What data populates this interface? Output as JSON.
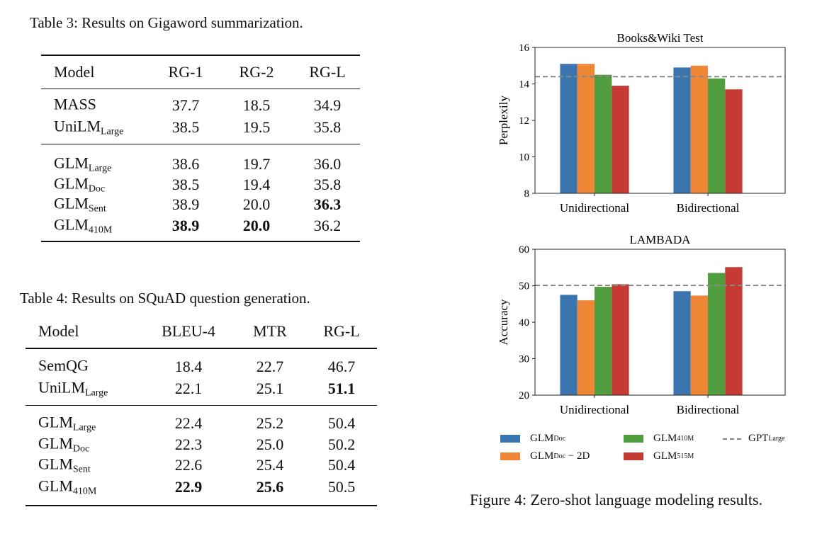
{
  "table3": {
    "caption": "Table 3: Results on Gigaword summarization.",
    "headers": [
      "Model",
      "RG-1",
      "RG-2",
      "RG-L"
    ],
    "rows": [
      {
        "model": "MASS",
        "sub": "",
        "v": [
          "37.7",
          "18.5",
          "34.9"
        ],
        "bold": [
          false,
          false,
          false
        ]
      },
      {
        "model": "UniLM",
        "sub": "Large",
        "v": [
          "38.5",
          "19.5",
          "35.8"
        ],
        "bold": [
          false,
          false,
          false
        ]
      },
      {
        "model": "GLM",
        "sub": "Large",
        "v": [
          "38.6",
          "19.7",
          "36.0"
        ],
        "bold": [
          false,
          false,
          false
        ]
      },
      {
        "model": "GLM",
        "sub": "Doc",
        "v": [
          "38.5",
          "19.4",
          "35.8"
        ],
        "bold": [
          false,
          false,
          false
        ]
      },
      {
        "model": "GLM",
        "sub": "Sent",
        "v": [
          "38.9",
          "20.0",
          "36.3"
        ],
        "bold": [
          false,
          false,
          true
        ]
      },
      {
        "model": "GLM",
        "sub": "410M",
        "v": [
          "38.9",
          "20.0",
          "36.2"
        ],
        "bold": [
          true,
          true,
          false
        ]
      }
    ]
  },
  "table4": {
    "caption": "Table 4: Results on SQuAD question generation.",
    "headers": [
      "Model",
      "BLEU-4",
      "MTR",
      "RG-L"
    ],
    "rows": [
      {
        "model": "SemQG",
        "sub": "",
        "v": [
          "18.4",
          "22.7",
          "46.7"
        ],
        "bold": [
          false,
          false,
          false
        ]
      },
      {
        "model": "UniLM",
        "sub": "Large",
        "v": [
          "22.1",
          "25.1",
          "51.1"
        ],
        "bold": [
          false,
          false,
          true
        ]
      },
      {
        "model": "GLM",
        "sub": "Large",
        "v": [
          "22.4",
          "25.2",
          "50.4"
        ],
        "bold": [
          false,
          false,
          false
        ]
      },
      {
        "model": "GLM",
        "sub": "Doc",
        "v": [
          "22.3",
          "25.0",
          "50.2"
        ],
        "bold": [
          false,
          false,
          false
        ]
      },
      {
        "model": "GLM",
        "sub": "Sent",
        "v": [
          "22.6",
          "25.4",
          "50.4"
        ],
        "bold": [
          false,
          false,
          false
        ]
      },
      {
        "model": "GLM",
        "sub": "410M",
        "v": [
          "22.9",
          "25.6",
          "50.5"
        ],
        "bold": [
          true,
          true,
          false
        ]
      }
    ]
  },
  "figure": {
    "caption": "Figure 4: Zero-shot language modeling results."
  },
  "legend": [
    {
      "label": "GLM",
      "sub": "Doc",
      "suffix": "",
      "color": "#3a75b0"
    },
    {
      "label": "GLM",
      "sub": "Doc",
      "suffix": " − 2D",
      "color": "#ef8636"
    },
    {
      "label": "GLM",
      "sub": "410M",
      "suffix": "",
      "color": "#519e3e"
    },
    {
      "label": "GLM",
      "sub": "515M",
      "suffix": "",
      "color": "#c53a32"
    },
    {
      "label": "GPT",
      "sub": "Large",
      "suffix": "",
      "color": "#888888",
      "style": "dashed"
    }
  ],
  "chart_data": [
    {
      "type": "bar",
      "title": "Books&Wiki Test",
      "ylabel": "Perplexily",
      "xlabel": "",
      "categories": [
        "Unidirectional",
        "Bidirectional"
      ],
      "ylim": [
        8,
        16
      ],
      "yticks": [
        "8",
        "10",
        "12",
        "14",
        "16"
      ],
      "grid": false,
      "series": [
        {
          "name": "GLMDoc",
          "values": [
            15.1,
            14.9
          ]
        },
        {
          "name": "GLMDoc − 2D",
          "values": [
            15.1,
            15.0
          ]
        },
        {
          "name": "GLM410M",
          "values": [
            14.5,
            14.3
          ]
        },
        {
          "name": "GLM515M",
          "values": [
            13.9,
            13.7
          ]
        }
      ],
      "reference_line": {
        "name": "GPTLarge",
        "value": 14.4
      }
    },
    {
      "type": "bar",
      "title": "LAMBADA",
      "ylabel": "Accuracy",
      "xlabel": "",
      "categories": [
        "Unidirectional",
        "Bidirectional"
      ],
      "ylim": [
        20,
        60
      ],
      "yticks": [
        "20",
        "30",
        "40",
        "50",
        "60"
      ],
      "grid": false,
      "series": [
        {
          "name": "GLMDoc",
          "values": [
            47.5,
            48.5
          ]
        },
        {
          "name": "GLMDoc − 2D",
          "values": [
            46.0,
            47.3
          ]
        },
        {
          "name": "GLM410M",
          "values": [
            49.7,
            53.5
          ]
        },
        {
          "name": "GLM515M",
          "values": [
            50.4,
            55.1
          ]
        }
      ],
      "reference_line": {
        "name": "GPTLarge",
        "value": 50.1
      }
    }
  ]
}
